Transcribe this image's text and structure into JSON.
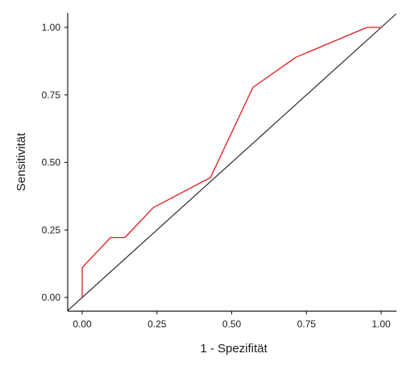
{
  "chart_data": {
    "type": "line",
    "title": "",
    "xlabel": "1 - Spezifität",
    "ylabel": "Sensitivität",
    "xlim": [
      0,
      1
    ],
    "ylim": [
      0,
      1
    ],
    "x_ticks": [
      "0.00",
      "0.25",
      "0.50",
      "0.75",
      "1.00"
    ],
    "y_ticks": [
      "0.00",
      "0.25",
      "0.50",
      "0.75",
      "1.00"
    ],
    "grid": false,
    "series": [
      {
        "role": "roc-curve",
        "color": "#e31a1c",
        "x": [
          0.0,
          0.0,
          0.095,
          0.143,
          0.238,
          0.429,
          0.571,
          0.714,
          0.952,
          1.0
        ],
        "y": [
          0.0,
          0.111,
          0.222,
          0.222,
          0.333,
          0.444,
          0.778,
          0.889,
          1.0,
          1.0
        ]
      },
      {
        "role": "diagonal-reference",
        "color": "#1a1a1a",
        "x": [
          -0.05,
          1.05
        ],
        "y": [
          -0.05,
          1.05
        ]
      }
    ]
  }
}
